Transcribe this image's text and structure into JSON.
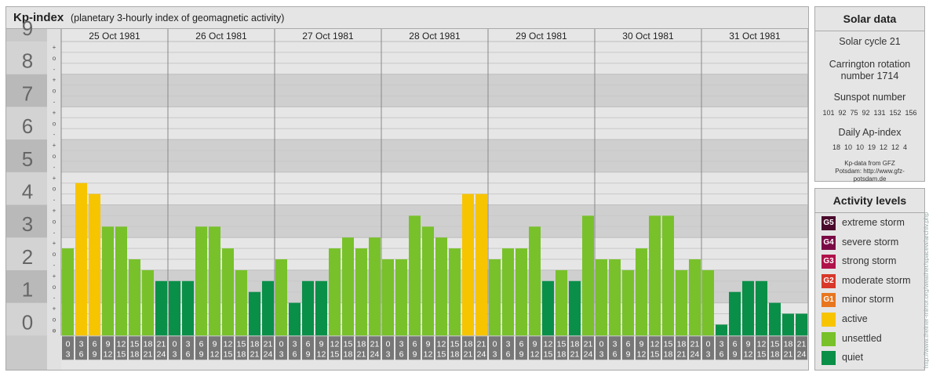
{
  "header": {
    "title": "Kp-index",
    "subtitle": "(planetary 3-hourly index of geomagnetic activity)"
  },
  "solar": {
    "heading": "Solar data",
    "cycle": "Solar cycle 21",
    "carrington": "Carrington rotation number 1714",
    "sunspot_label": "Sunspot number",
    "sunspot_values": "101  92  75  92  131  152  156",
    "ap_label": "Daily Ap-index",
    "ap_values": "18  10  10  19  12  12  4",
    "source": "Kp-data from GFZ Potsdam: http://www.gfz-potsdam.de"
  },
  "activity": {
    "heading": "Activity levels",
    "levels": [
      {
        "code": "G5",
        "label": "extreme storm",
        "color": "#4a0a2c"
      },
      {
        "code": "G4",
        "label": "severe storm",
        "color": "#7a0a45"
      },
      {
        "code": "G3",
        "label": "strong storm",
        "color": "#b0124a"
      },
      {
        "code": "G2",
        "label": "moderate storm",
        "color": "#d8382a"
      },
      {
        "code": "G1",
        "label": "minor storm",
        "color": "#e8761e"
      },
      {
        "code": "",
        "label": "active",
        "color": "#f7c400"
      },
      {
        "code": "",
        "label": "unsettled",
        "color": "#78c12a"
      },
      {
        "code": "",
        "label": "quiet",
        "color": "#0a8f48"
      }
    ]
  },
  "watermark": "http://www.theiner-mirror.org/weather/spacew/archiv.php",
  "chart_data": {
    "type": "bar",
    "ylim": [
      0,
      9
    ],
    "y_ticks": [
      "0",
      "1",
      "2",
      "3",
      "4",
      "5",
      "6",
      "7",
      "8",
      "9"
    ],
    "y_sub_ticks": [
      "+",
      "o",
      "-"
    ],
    "dates": [
      "25 Oct 1981",
      "26 Oct 1981",
      "27 Oct 1981",
      "28 Oct 1981",
      "29 Oct 1981",
      "30 Oct 1981",
      "31 Oct 1981"
    ],
    "interval_starts": [
      "0",
      "3",
      "6",
      "9",
      "12",
      "15",
      "18",
      "21"
    ],
    "interval_ends": [
      "3",
      "6",
      "9",
      "12",
      "15",
      "18",
      "21",
      "24"
    ],
    "values": [
      [
        2.667,
        4.667,
        4.333,
        3.333,
        3.333,
        2.333,
        2.0,
        1.667
      ],
      [
        1.667,
        1.667,
        3.333,
        3.333,
        2.667,
        2.0,
        1.333,
        1.667
      ],
      [
        2.333,
        1.0,
        1.667,
        1.667,
        2.667,
        3.0,
        2.667,
        3.0
      ],
      [
        2.333,
        2.333,
        3.667,
        3.333,
        3.0,
        2.667,
        4.333,
        4.333
      ],
      [
        2.333,
        2.667,
        2.667,
        3.333,
        1.667,
        2.0,
        1.667,
        3.667
      ],
      [
        2.333,
        2.333,
        2.0,
        2.667,
        3.667,
        3.667,
        2.0,
        2.333
      ],
      [
        2.0,
        0.333,
        1.333,
        1.667,
        1.667,
        1.0,
        0.667,
        0.667
      ]
    ],
    "colors": {
      "quiet": "#0a8f48",
      "unsettled": "#78c12a",
      "active": "#f7c400",
      "minor_storm": "#e8761e"
    }
  }
}
